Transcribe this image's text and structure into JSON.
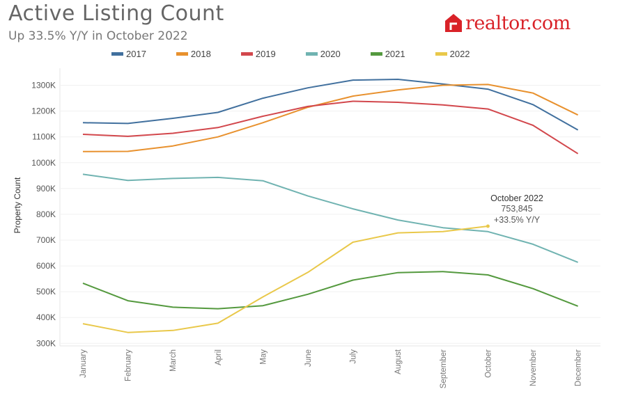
{
  "header": {
    "title": "Active Listing Count",
    "subtitle": "Up 33.5% Y/Y in October 2022",
    "logo_text": "realtor.com"
  },
  "colors": {
    "2017": "#41709e",
    "2018": "#e8912e",
    "2019": "#d2474c",
    "2020": "#70b3b1",
    "2021": "#54993e",
    "2022": "#e9c84a",
    "logo": "#d92228"
  },
  "chart_data": {
    "type": "line",
    "title": "Active Listing Count",
    "subtitle": "Up 33.5% Y/Y in October 2022",
    "xlabel": "",
    "ylabel": "Property Count",
    "ylim": [
      290000,
      1350000
    ],
    "yticks": [
      300000,
      400000,
      500000,
      600000,
      700000,
      800000,
      900000,
      1000000,
      1100000,
      1200000,
      1300000
    ],
    "ytick_labels": [
      "300K",
      "400K",
      "500K",
      "600K",
      "700K",
      "800K",
      "900K",
      "1000K",
      "1100K",
      "1200K",
      "1300K"
    ],
    "categories": [
      "January",
      "February",
      "March",
      "April",
      "May",
      "June",
      "July",
      "August",
      "September",
      "October",
      "November",
      "December"
    ],
    "legend_position": "top",
    "series": [
      {
        "name": "2017",
        "values": [
          1155000,
          1152000,
          1172000,
          1195000,
          1250000,
          1290000,
          1320000,
          1323000,
          1305000,
          1285000,
          1225000,
          1127000
        ]
      },
      {
        "name": "2018",
        "values": [
          1043000,
          1044000,
          1065000,
          1100000,
          1155000,
          1215000,
          1258000,
          1282000,
          1300000,
          1303000,
          1270000,
          1185000
        ]
      },
      {
        "name": "2019",
        "values": [
          1110000,
          1102000,
          1114000,
          1136000,
          1180000,
          1218000,
          1238000,
          1234000,
          1224000,
          1208000,
          1145000,
          1035000
        ]
      },
      {
        "name": "2020",
        "values": [
          955000,
          931000,
          939000,
          943000,
          930000,
          871000,
          821000,
          778000,
          748000,
          733000,
          684000,
          614000
        ]
      },
      {
        "name": "2021",
        "values": [
          533000,
          465000,
          440000,
          434000,
          446000,
          490000,
          545000,
          574000,
          578000,
          565000,
          512000,
          444000
        ]
      },
      {
        "name": "2022",
        "values": [
          376000,
          342000,
          350000,
          378000,
          480000,
          575000,
          692000,
          728000,
          733000,
          753845,
          null,
          null
        ]
      }
    ],
    "annotation": {
      "series": "2022",
      "category": "October",
      "line1": "October 2022",
      "line2": "753,845",
      "line3": "+33.5% Y/Y"
    }
  }
}
